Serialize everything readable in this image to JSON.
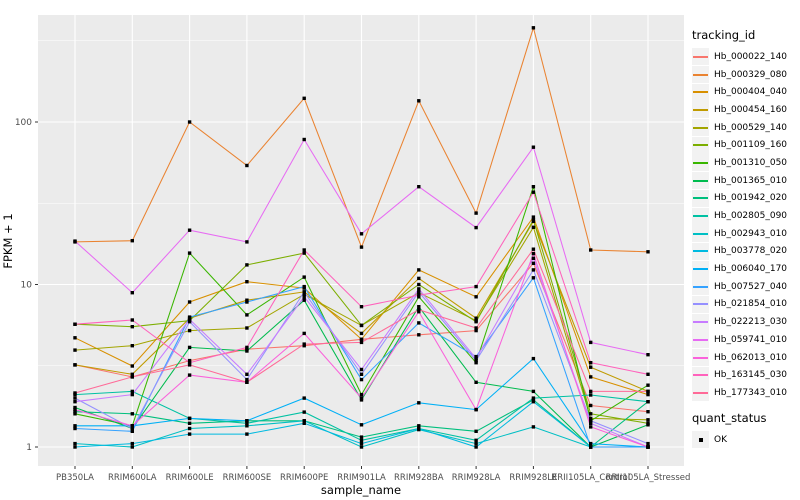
{
  "figure": {
    "background": "#FFFFFF",
    "panel_background": "#EBEBEB",
    "grid_color": "#FFFFFF",
    "tick_color": "#333333",
    "tick_label_color": "#4D4D4D",
    "axis_title_color": "#000000",
    "point_color": "#000000"
  },
  "legend": {
    "tracking_title": "tracking_id",
    "quant_title": "quant_status",
    "quant_value": "OK",
    "key_background": "#F2F2F2"
  },
  "chart_data": {
    "type": "line",
    "title": "",
    "xlabel": "sample_name",
    "ylabel": "FPKM + 1",
    "y_scale": "log10",
    "y_ticks": [
      1,
      10,
      100
    ],
    "y_minor_ticks": [
      3.162,
      31.62,
      316.2
    ],
    "ylim": [
      0.75,
      460
    ],
    "grid": true,
    "legend_position": "right",
    "point_shape": "filled-square",
    "categories": [
      "PB350LA",
      "RRIM600LA",
      "RRIM600LE",
      "RRIM600SE",
      "RRIM600PE",
      "RRIM901LA",
      "RRIM928BA",
      "RRIM928LA",
      "RRIM928LE",
      "RRII105LA_Control",
      "RRII105LA_Stressed"
    ],
    "series": [
      {
        "name": "Hb_000022_140",
        "color": "#F8766D",
        "values": [
          3.2,
          2.7,
          3.4,
          4.0,
          4.2,
          4.6,
          4.9,
          5.2,
          13.5,
          1.8,
          1.65
        ]
      },
      {
        "name": "Hb_000329_080",
        "color": "#EA8331",
        "values": [
          18.3,
          18.6,
          100,
          54,
          140,
          17,
          135,
          27.5,
          380,
          16.3,
          15.9
        ]
      },
      {
        "name": "Hb_000404_040",
        "color": "#D89000",
        "values": [
          4.7,
          3.15,
          7.8,
          10.4,
          9.5,
          4.6,
          12.3,
          8.4,
          26,
          2.7,
          2.1
        ]
      },
      {
        "name": "Hb_000454_160",
        "color": "#C09B00",
        "values": [
          3.2,
          2.8,
          6.2,
          8.0,
          9.0,
          5.0,
          10.9,
          6.2,
          24.5,
          3.1,
          2.2
        ]
      },
      {
        "name": "Hb_000529_140",
        "color": "#A3A500",
        "values": [
          3.95,
          4.2,
          5.2,
          5.4,
          8.7,
          5.6,
          8.9,
          6.0,
          22.5,
          1.5,
          1.47
        ]
      },
      {
        "name": "Hb_001109_160",
        "color": "#7CAE00",
        "values": [
          5.7,
          5.5,
          6.0,
          13.2,
          15.6,
          5.6,
          10.0,
          5.9,
          25,
          1.6,
          1.4
        ]
      },
      {
        "name": "Hb_001310_050",
        "color": "#39B600",
        "values": [
          1.6,
          1.35,
          15.6,
          6.5,
          11.1,
          2.1,
          8.4,
          3.3,
          40,
          1.45,
          2.4
        ]
      },
      {
        "name": "Hb_001365_010",
        "color": "#00BB4E",
        "values": [
          1.75,
          1.3,
          4.1,
          3.9,
          8.0,
          1.95,
          7.3,
          2.5,
          2.2,
          1.0,
          1.37
        ]
      },
      {
        "name": "Hb_001942_020",
        "color": "#00BF7D",
        "values": [
          1.65,
          1.6,
          1.4,
          1.45,
          1.45,
          1.15,
          1.35,
          1.25,
          1.95,
          1.0,
          1.9
        ]
      },
      {
        "name": "Hb_002805_090",
        "color": "#00C1A3",
        "values": [
          2.1,
          2.2,
          1.5,
          1.4,
          1.64,
          1.1,
          1.3,
          1.1,
          2.0,
          2.09,
          1.9
        ]
      },
      {
        "name": "Hb_002943_010",
        "color": "#00BFC4",
        "values": [
          1.05,
          1.0,
          1.3,
          1.35,
          1.45,
          1.0,
          1.28,
          1.05,
          1.33,
          1.0,
          1.0
        ]
      },
      {
        "name": "Hb_003778_020",
        "color": "#00BAE0",
        "values": [
          1.0,
          1.05,
          1.2,
          1.2,
          1.4,
          1.05,
          1.3,
          1.0,
          1.9,
          1.0,
          1.0
        ]
      },
      {
        "name": "Hb_006040_170",
        "color": "#00B0F6",
        "values": [
          1.35,
          1.35,
          1.5,
          1.45,
          2.0,
          1.37,
          1.87,
          1.7,
          3.5,
          1.05,
          1.0
        ]
      },
      {
        "name": "Hb_007527_040",
        "color": "#35A2FF",
        "values": [
          1.3,
          1.25,
          6.3,
          7.8,
          9.7,
          2.6,
          5.8,
          3.6,
          11.0,
          1.0,
          1.0
        ]
      },
      {
        "name": "Hb_021854_010",
        "color": "#9590FF",
        "values": [
          2.0,
          1.3,
          5.9,
          2.6,
          9.0,
          2.8,
          9.0,
          3.4,
          12.3,
          1.45,
          1.05
        ]
      },
      {
        "name": "Hb_022213_030",
        "color": "#C77CFF",
        "values": [
          1.9,
          2.1,
          6.1,
          2.8,
          8.4,
          3.0,
          9.4,
          3.5,
          14.5,
          1.4,
          1.0
        ]
      },
      {
        "name": "Hb_059741_010",
        "color": "#E76BF3",
        "values": [
          18.5,
          8.9,
          21.6,
          18.3,
          78,
          20.5,
          40,
          22.4,
          70,
          4.4,
          3.7
        ]
      },
      {
        "name": "Hb_062013_010",
        "color": "#FA62DB",
        "values": [
          1.7,
          1.35,
          2.77,
          2.5,
          5.0,
          2.0,
          6.8,
          1.7,
          15.5,
          1.33,
          1.0
        ]
      },
      {
        "name": "Hb_163145_030",
        "color": "#FF62BC",
        "values": [
          5.7,
          6.05,
          3.3,
          4.1,
          16.3,
          7.3,
          8.6,
          9.7,
          37,
          3.3,
          2.8
        ]
      },
      {
        "name": "Hb_177343_010",
        "color": "#FF6A98",
        "values": [
          2.15,
          2.7,
          3.2,
          2.5,
          4.3,
          4.4,
          7.0,
          5.4,
          16.5,
          2.2,
          2.2
        ]
      }
    ]
  }
}
